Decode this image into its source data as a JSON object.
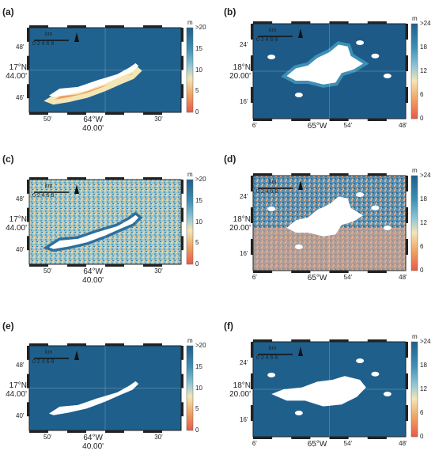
{
  "panels": [
    {
      "id": "a",
      "label": "(a)",
      "unit": "m",
      "ticks": [
        ">20",
        "15",
        "10",
        "5",
        "0"
      ],
      "scale": "km",
      "scale_nums": "0  2  4  6  8",
      "lat_ticks": [
        "48'",
        "46'"
      ],
      "lat_main": [
        "17°N",
        "44.00'"
      ],
      "lon_ticks": [
        "50'",
        "30'"
      ],
      "lon_main": [
        "64°W",
        "40.00'"
      ],
      "style": "orange"
    },
    {
      "id": "b",
      "label": "(b)",
      "unit": "m",
      "ticks": [
        ">24",
        "18",
        "12",
        "6",
        "0"
      ],
      "scale": "km",
      "scale_nums": "0  2  4  6  8",
      "lat_ticks": [
        "24'",
        "16'"
      ],
      "lat_main": [
        "18°N",
        "20.00'"
      ],
      "lon_ticks": [
        "6'",
        "54'",
        "48'"
      ],
      "lon_main": [
        "65°W"
      ],
      "style": "blue"
    },
    {
      "id": "c",
      "label": "(c)",
      "unit": "m",
      "ticks": [
        ">20",
        "15",
        "10",
        "5",
        "0"
      ],
      "scale": "km",
      "scale_nums": "0  2  4  6  8",
      "lat_ticks": [
        "48'",
        "40'"
      ],
      "lat_main": [
        "17°N",
        "44.00'"
      ],
      "lon_ticks": [
        "50'",
        "30'"
      ],
      "lon_main": [
        "64°W",
        "40.00'"
      ],
      "style": "noisy"
    },
    {
      "id": "d",
      "label": "(d)",
      "unit": "m",
      "ticks": [
        ">24",
        "18",
        "12",
        "6",
        "0"
      ],
      "scale": "km",
      "scale_nums": "0  2  4  6  8",
      "lat_ticks": [
        "24'",
        "16'"
      ],
      "lat_main": [
        "18°N",
        "20.00'"
      ],
      "lon_ticks": [
        "6'",
        "54'",
        "48'"
      ],
      "lon_main": [
        "65°W"
      ],
      "style": "mixed"
    },
    {
      "id": "e",
      "label": "(e)",
      "unit": "m",
      "ticks": [
        ">20",
        "15",
        "10",
        "5",
        "0"
      ],
      "scale": "km",
      "scale_nums": "0  2  4  6  8",
      "lat_ticks": [
        "48'",
        "40'"
      ],
      "lat_main": [
        "17°N",
        "44.00'"
      ],
      "lon_ticks": [
        "50'",
        "30'"
      ],
      "lon_main": [
        "64°W",
        "40.00'"
      ],
      "style": "deep"
    },
    {
      "id": "f",
      "label": "(f)",
      "unit": "m",
      "ticks": [
        ">24",
        "18",
        "12",
        "6",
        "0"
      ],
      "scale": "km",
      "scale_nums": "0  2  4  6  8",
      "lat_ticks": [
        "24'",
        "16'"
      ],
      "lat_main": [
        "18°N",
        "20.00'"
      ],
      "lon_ticks": [
        "6'",
        "54'",
        "48'"
      ],
      "lon_main": [
        "65°W"
      ],
      "style": "deep"
    }
  ],
  "colors": {
    "deep": "#1f5f8b",
    "mid": "#3d8fb5",
    "light": "#8fc6d6",
    "cream": "#f3e6b5",
    "orange": "#f0a060",
    "red": "#e8584a",
    "land": "#ffffff"
  }
}
